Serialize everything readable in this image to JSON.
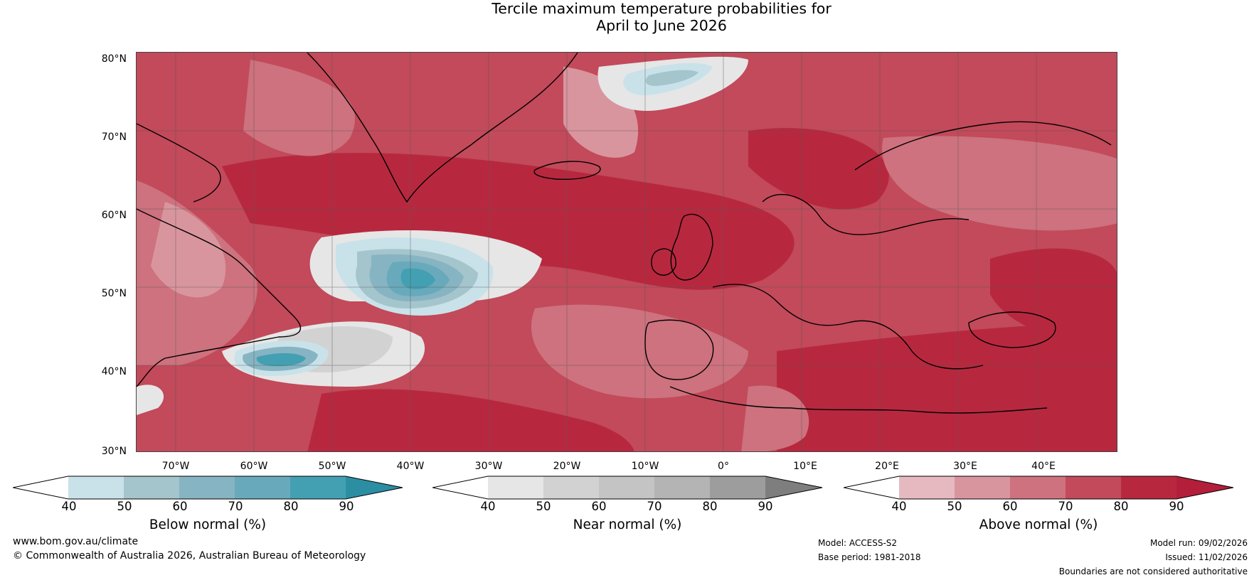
{
  "title": {
    "line1": "Tercile maximum temperature probabilities for",
    "line2": "April to June 2026"
  },
  "map": {
    "lat_labels": [
      "80°N",
      "70°N",
      "60°N",
      "50°N",
      "40°N",
      "30°N"
    ],
    "lon_labels": [
      "70°W",
      "60°W",
      "50°W",
      "40°W",
      "30°W",
      "20°W",
      "10°W",
      "0°",
      "10°E",
      "20°E",
      "30°E",
      "40°E"
    ],
    "colors": {
      "base_above": "#c24a5a",
      "above_80": "#b7283f",
      "above_70": "#c24a5a",
      "above_60": "#cd727e",
      "above_50": "#d9959e",
      "above_40": "#e6b9c0",
      "near_40": "#e6e6e6",
      "near_50": "#d2d2d2",
      "below_40": "#c9e2ea",
      "below_50": "#a5c5cd",
      "below_60": "#87b4c2",
      "below_70": "#68aabc",
      "below_80": "#43a0b2",
      "coast": "#000000",
      "border": "#8a8a8a"
    }
  },
  "colorbars": [
    {
      "title": "Below normal (%)",
      "ticks": [
        "40",
        "50",
        "60",
        "70",
        "80",
        "90"
      ],
      "colors": [
        "#ffffff",
        "#c9e2ea",
        "#a5c5cd",
        "#87b4c2",
        "#68aabc",
        "#43a0b2",
        "#2b8ea3"
      ]
    },
    {
      "title": "Near normal (%)",
      "ticks": [
        "40",
        "50",
        "60",
        "70",
        "80",
        "90"
      ],
      "colors": [
        "#ffffff",
        "#e6e6e6",
        "#d2d2d2",
        "#c4c4c4",
        "#b4b4b4",
        "#9d9d9d",
        "#7e7e7e"
      ]
    },
    {
      "title": "Above normal (%)",
      "ticks": [
        "40",
        "50",
        "60",
        "70",
        "80",
        "90"
      ],
      "colors": [
        "#ffffff",
        "#e6b9c0",
        "#d9959e",
        "#cd727e",
        "#c24a5a",
        "#b7283f",
        "#b31e3a"
      ]
    }
  ],
  "footer": {
    "website": "www.bom.gov.au/climate",
    "copyright": "© Commonwealth of Australia 2026, Australian Bureau of Meteorology",
    "model": "Model: ACCESS-S2",
    "base_period": "Base period: 1981-2018",
    "model_run": "Model run: 09/02/2026",
    "issued": "Issued: 11/02/2026",
    "disclaimer": "Boundaries are not considered authoritative"
  }
}
